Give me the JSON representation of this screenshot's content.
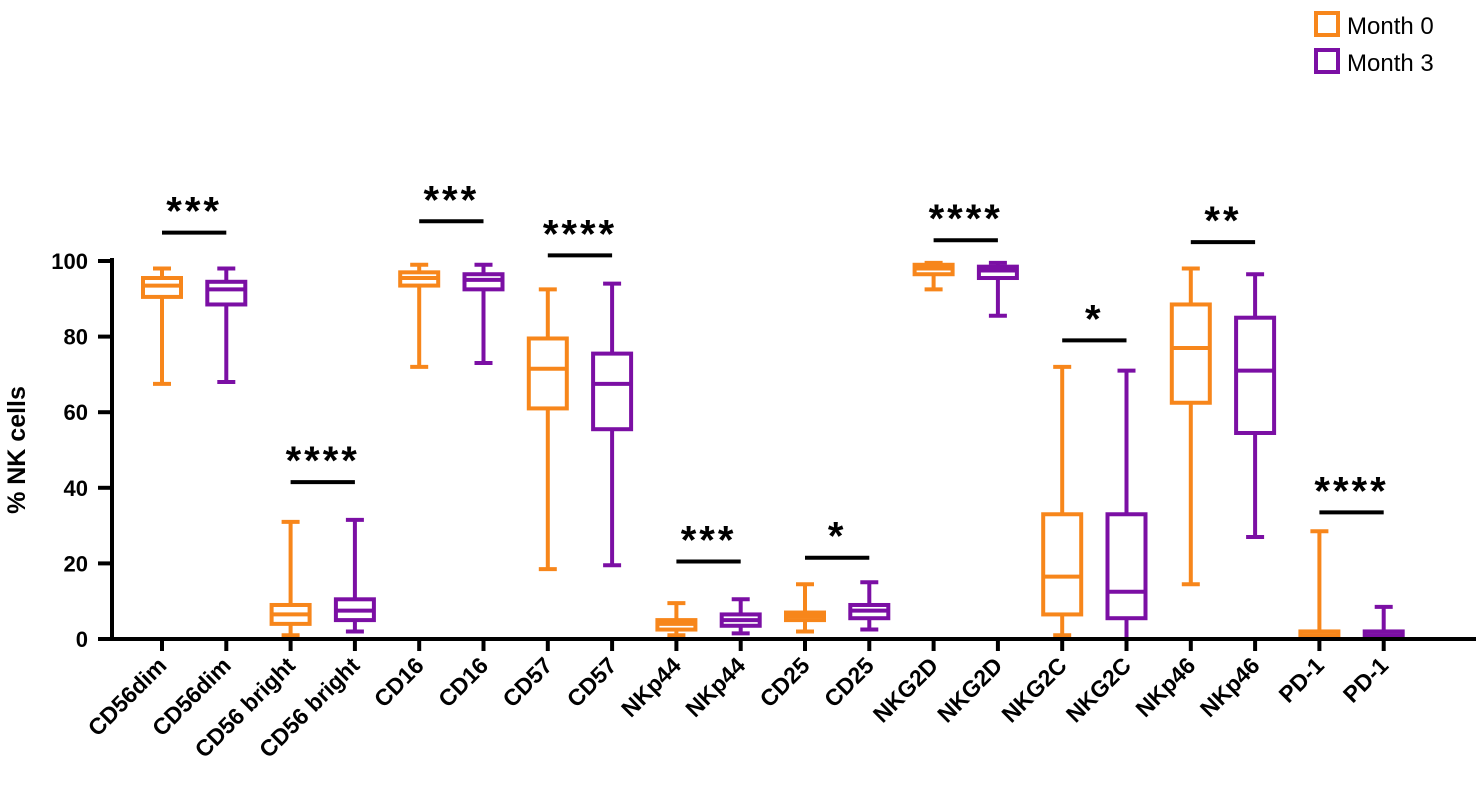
{
  "chart_data": {
    "type": "box",
    "title": "",
    "xlabel": "",
    "ylabel": "% NK cells",
    "ylim": [
      0,
      100
    ],
    "yticks": [
      0,
      20,
      40,
      60,
      80,
      100
    ],
    "legend_position": "top-right",
    "series": [
      {
        "name": "Month 0",
        "color": "#F7861B"
      },
      {
        "name": "Month 3",
        "color": "#7B0FA4"
      }
    ],
    "boxes": [
      {
        "label": "CD56dim",
        "series": "Month 0",
        "min": 67.5,
        "q1": 90.5,
        "median": 93.5,
        "q3": 95.5,
        "max": 98
      },
      {
        "label": "CD56dim",
        "series": "Month 3",
        "min": 68,
        "q1": 88.5,
        "median": 92.5,
        "q3": 94.5,
        "max": 98
      },
      {
        "label": "CD56 bright",
        "series": "Month 0",
        "min": 1,
        "q1": 4,
        "median": 6.5,
        "q3": 9,
        "max": 31
      },
      {
        "label": "CD56 bright",
        "series": "Month 3",
        "min": 2,
        "q1": 5,
        "median": 7.5,
        "q3": 10.5,
        "max": 31.5
      },
      {
        "label": "CD16",
        "series": "Month 0",
        "min": 72,
        "q1": 93.5,
        "median": 95.5,
        "q3": 97,
        "max": 99
      },
      {
        "label": "CD16",
        "series": "Month 3",
        "min": 73,
        "q1": 92.5,
        "median": 95,
        "q3": 96.5,
        "max": 99
      },
      {
        "label": "CD57",
        "series": "Month 0",
        "min": 18.5,
        "q1": 61,
        "median": 71.5,
        "q3": 79.5,
        "max": 92.5
      },
      {
        "label": "CD57",
        "series": "Month 3",
        "min": 19.5,
        "q1": 55.5,
        "median": 67.5,
        "q3": 75.5,
        "max": 94
      },
      {
        "label": "NKp44",
        "series": "Month 0",
        "min": 1,
        "q1": 2.5,
        "median": 4,
        "q3": 5,
        "max": 9.5
      },
      {
        "label": "NKp44",
        "series": "Month 3",
        "min": 1.5,
        "q1": 3.5,
        "median": 5,
        "q3": 6.5,
        "max": 10.5
      },
      {
        "label": "CD25",
        "series": "Month 0",
        "min": 2,
        "q1": 5,
        "median": 6,
        "q3": 7,
        "max": 14.5
      },
      {
        "label": "CD25",
        "series": "Month 3",
        "min": 2.5,
        "q1": 5.5,
        "median": 7.5,
        "q3": 9,
        "max": 15
      },
      {
        "label": "NKG2D",
        "series": "Month 0",
        "min": 92.5,
        "q1": 96.5,
        "median": 98,
        "q3": 99,
        "max": 99.5
      },
      {
        "label": "NKG2D",
        "series": "Month 3",
        "min": 85.5,
        "q1": 95.5,
        "median": 97.5,
        "q3": 98.5,
        "max": 99.5
      },
      {
        "label": "NKG2C",
        "series": "Month 0",
        "min": 1,
        "q1": 6.5,
        "median": 16.5,
        "q3": 33,
        "max": 72
      },
      {
        "label": "NKG2C",
        "series": "Month 3",
        "min": 0,
        "q1": 5.5,
        "median": 12.5,
        "q3": 33,
        "max": 71
      },
      {
        "label": "NKp46",
        "series": "Month 0",
        "min": 14.5,
        "q1": 62.5,
        "median": 77,
        "q3": 88.5,
        "max": 98
      },
      {
        "label": "NKp46",
        "series": "Month 3",
        "min": 27,
        "q1": 54.5,
        "median": 71,
        "q3": 85,
        "max": 96.5
      },
      {
        "label": "PD-1",
        "series": "Month 0",
        "min": 0,
        "q1": 0.5,
        "median": 1,
        "q3": 2,
        "max": 28.5
      },
      {
        "label": "PD-1",
        "series": "Month 3",
        "min": 0,
        "q1": 0.5,
        "median": 1,
        "q3": 2,
        "max": 8.5
      }
    ],
    "significance": [
      {
        "pair": "CD56dim",
        "label": "***",
        "y": 107.5
      },
      {
        "pair": "CD56 bright",
        "label": "****",
        "y": 41.5
      },
      {
        "pair": "CD16",
        "label": "***",
        "y": 110.5
      },
      {
        "pair": "CD57",
        "label": "****",
        "y": 101.5
      },
      {
        "pair": "NKp44",
        "label": "***",
        "y": 20.5
      },
      {
        "pair": "CD25",
        "label": "*",
        "y": 21.5
      },
      {
        "pair": "NKG2D",
        "label": "****",
        "y": 105.5
      },
      {
        "pair": "NKG2C",
        "label": "*",
        "y": 79
      },
      {
        "pair": "NKp46",
        "label": "**",
        "y": 105
      },
      {
        "pair": "PD-1",
        "label": "****",
        "y": 33.5
      }
    ]
  }
}
